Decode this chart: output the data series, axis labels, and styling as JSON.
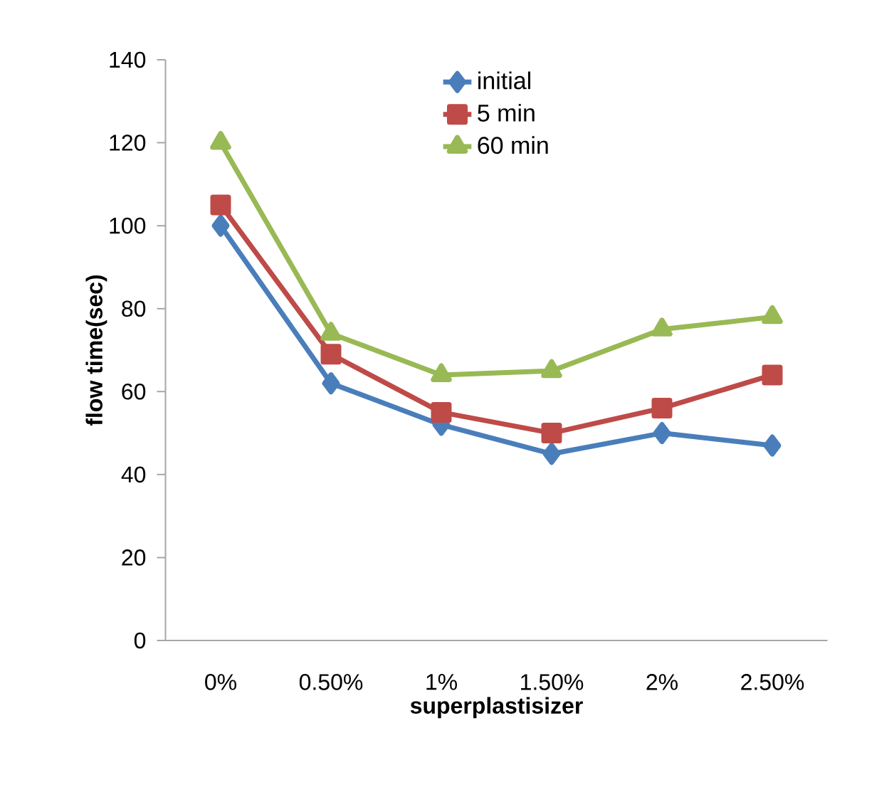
{
  "chart_data": {
    "type": "line",
    "xlabel": "superplastisizer",
    "ylabel": "flow time(sec)",
    "categories": [
      "0%",
      "0.50%",
      "1%",
      "1.50%",
      "2%",
      "2.50%"
    ],
    "series": [
      {
        "name": "initial",
        "color": "#4a7ebb",
        "marker": "diamond",
        "values": [
          100,
          62,
          52,
          45,
          50,
          47
        ]
      },
      {
        "name": "5 min",
        "color": "#be4b48",
        "marker": "square",
        "values": [
          105,
          69,
          55,
          50,
          56,
          64
        ]
      },
      {
        "name": "60 min",
        "color": "#98b954",
        "marker": "triangle",
        "values": [
          120,
          74,
          64,
          65,
          75,
          78
        ]
      }
    ],
    "ylim": [
      0,
      140
    ],
    "yticks": [
      0,
      20,
      40,
      60,
      80,
      100,
      120,
      140
    ],
    "legend": "top",
    "grid": false
  }
}
